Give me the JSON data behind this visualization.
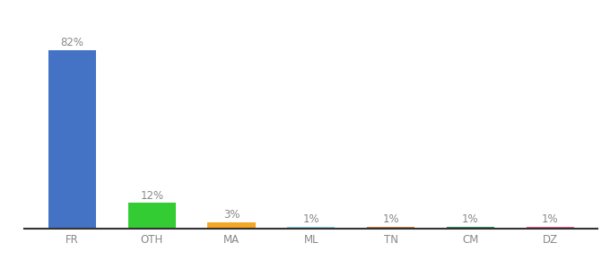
{
  "categories": [
    "FR",
    "OTH",
    "MA",
    "ML",
    "TN",
    "CM",
    "DZ"
  ],
  "values": [
    82,
    12,
    3,
    1,
    1,
    1,
    1
  ],
  "labels": [
    "82%",
    "12%",
    "3%",
    "1%",
    "1%",
    "1%",
    "1%"
  ],
  "bar_colors": [
    "#4472c4",
    "#33cc33",
    "#f5a623",
    "#87ceeb",
    "#c87941",
    "#2d8a4e",
    "#e75480"
  ],
  "background_color": "#ffffff",
  "ylim": [
    0,
    95
  ],
  "label_fontsize": 8.5,
  "tick_fontsize": 8.5,
  "label_color": "#888888",
  "tick_color": "#888888"
}
